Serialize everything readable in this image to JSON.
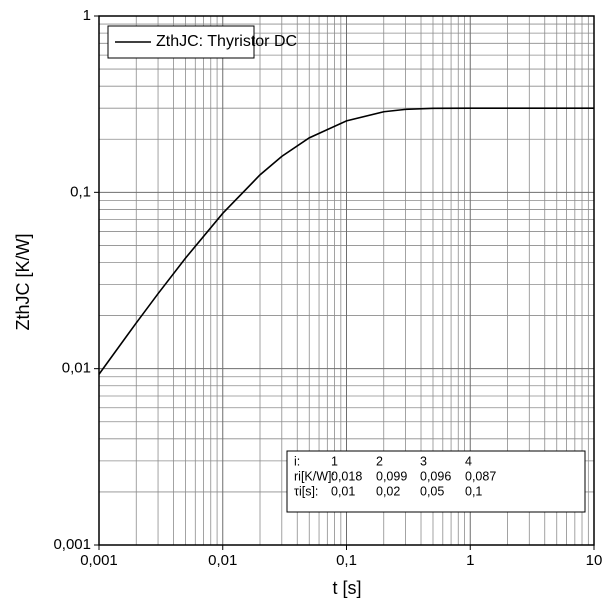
{
  "chart_data": {
    "type": "line",
    "xlabel": "t [s]",
    "ylabel": "ZthJC [K/W]",
    "log_x": true,
    "log_y": true,
    "grid": true,
    "minor_grid": true,
    "legend": "top-left",
    "xlim": [
      0.001,
      10
    ],
    "ylim": [
      0.001,
      1
    ],
    "xticks": [
      {
        "value": 0.001,
        "label": "0,001"
      },
      {
        "value": 0.01,
        "label": "0,01"
      },
      {
        "value": 0.1,
        "label": "0,1"
      },
      1,
      10
    ],
    "yticks": [
      {
        "value": 0.001,
        "label": "0,001"
      },
      {
        "value": 0.01,
        "label": "0,01"
      },
      {
        "value": 0.1,
        "label": "0,1"
      },
      1
    ],
    "x": [
      0.001,
      0.002,
      0.003,
      0.005,
      0.01,
      0.02,
      0.03,
      0.05,
      0.1,
      0.2,
      0.3,
      0.5,
      1,
      2,
      5,
      10
    ],
    "series": [
      {
        "name": "ZthJC: Thyristor DC",
        "color": "#000000",
        "values": [
          0.0093,
          0.01817,
          0.02662,
          0.04236,
          0.07602,
          0.1256,
          0.1599,
          0.2037,
          0.2543,
          0.2865,
          0.2954,
          0.2994,
          0.3,
          0.3,
          0.3,
          0.3
        ]
      }
    ],
    "table": {
      "rows": [
        [
          "i:",
          "1",
          "2",
          "3",
          "4"
        ],
        [
          "ri[K/W]:",
          "0,018",
          "0,099",
          "0,096",
          "0,087"
        ],
        [
          "τi[s]:",
          "0,01",
          "0,02",
          "0,05",
          "0,1"
        ]
      ]
    }
  }
}
